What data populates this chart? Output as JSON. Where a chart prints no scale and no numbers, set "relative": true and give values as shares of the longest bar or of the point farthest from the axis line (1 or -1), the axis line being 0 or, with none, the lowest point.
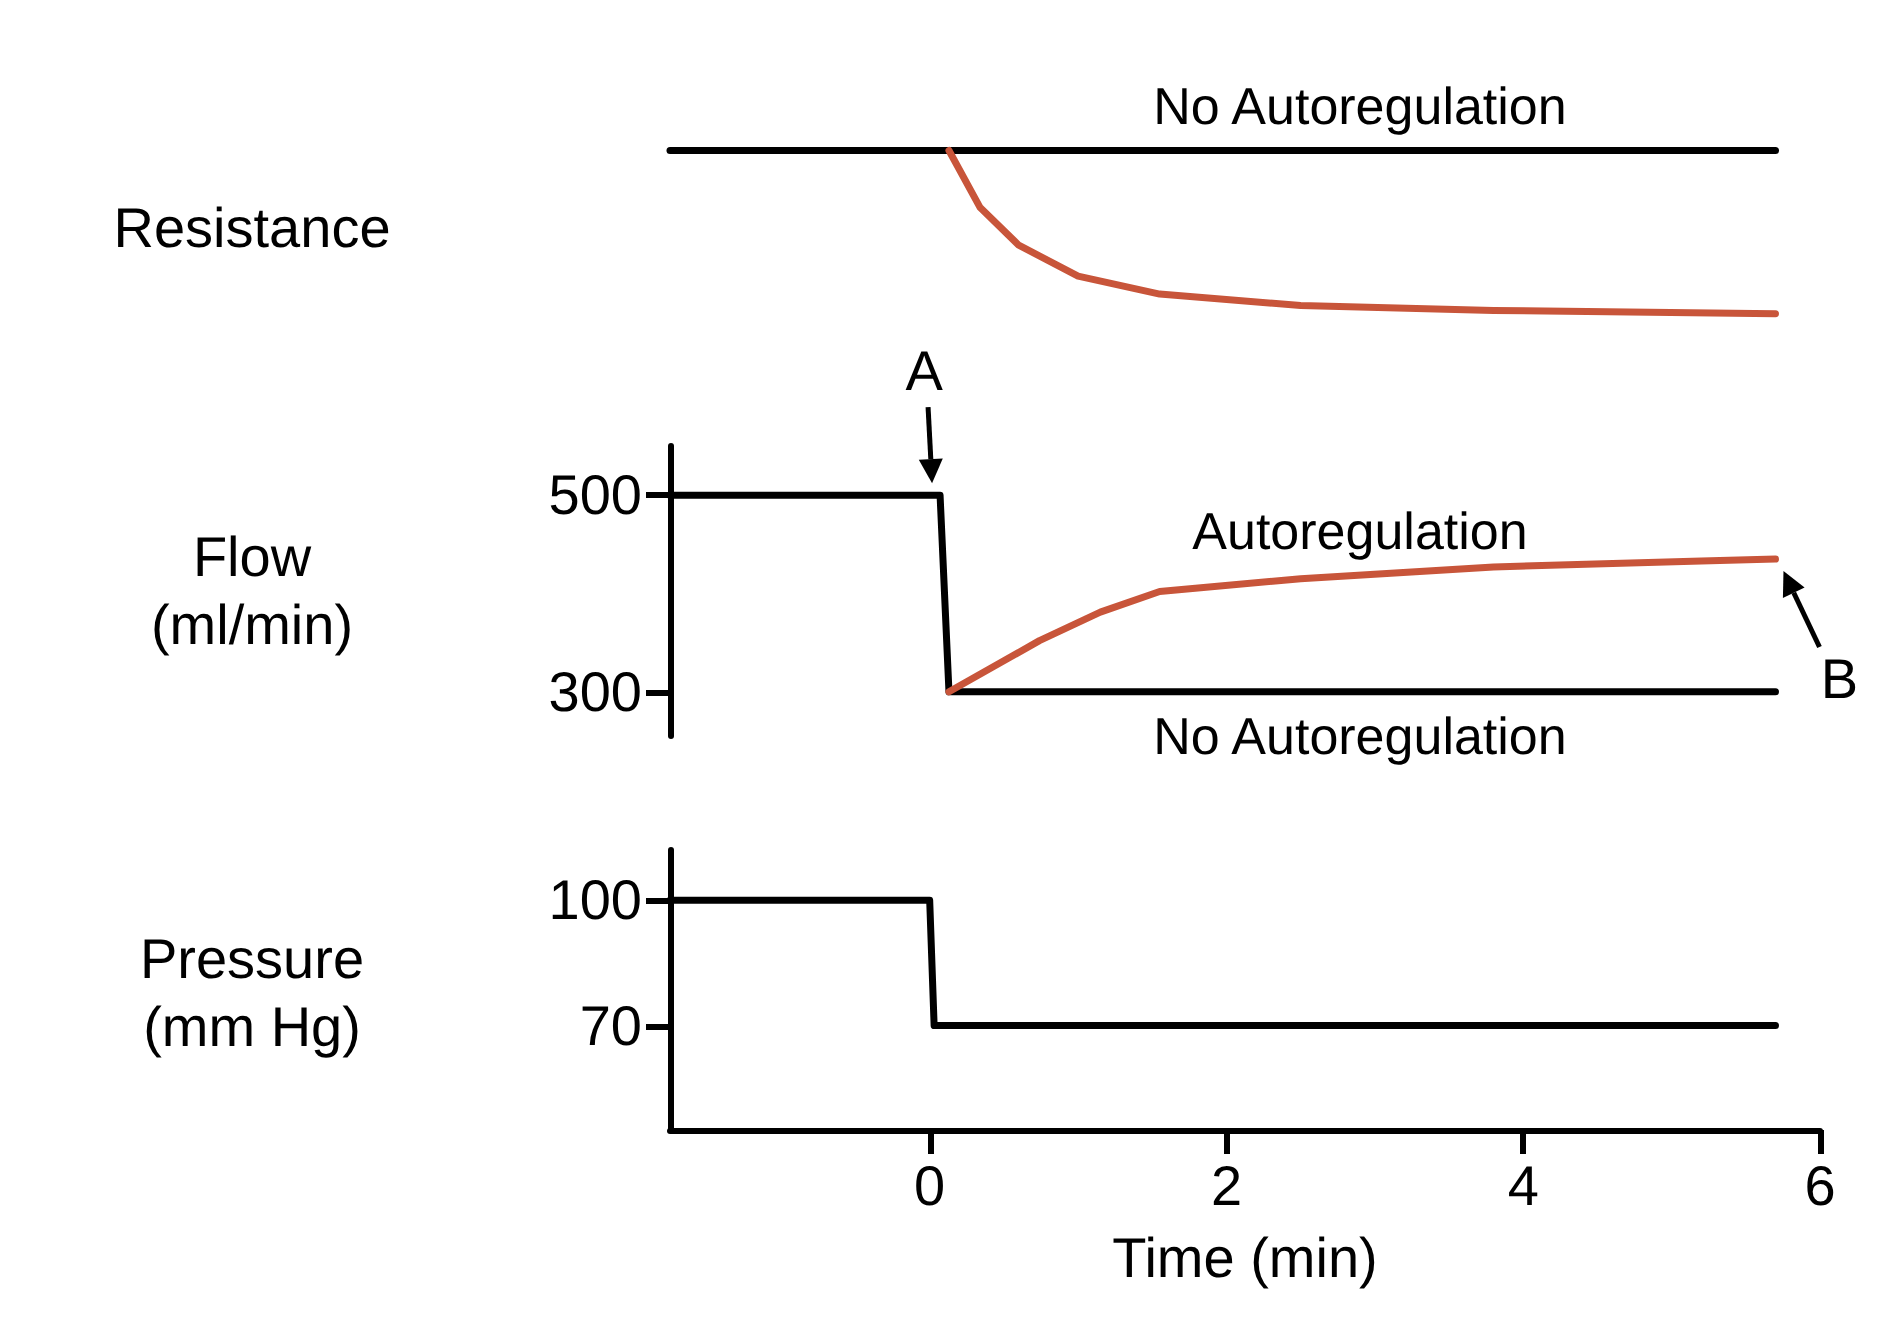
{
  "chart_data": [
    {
      "type": "line",
      "ylabel": "Resistance",
      "relative": true,
      "xlim": [
        -1.75,
        6
      ],
      "tick_labels": false,
      "series": [
        {
          "name": "No Autoregulation",
          "color": "#000000",
          "x": [
            -1.75,
            5.7
          ],
          "values": [
            1,
            1
          ]
        },
        {
          "color": "#c8553a",
          "x": [
            0.13,
            0.34,
            0.6,
            1.0,
            1.55,
            2.5,
            3.8,
            5.7
          ],
          "values": [
            1,
            0.65,
            0.42,
            0.23,
            0.12,
            0.05,
            0.02,
            0
          ]
        }
      ]
    },
    {
      "type": "line",
      "ylabel": "Flow\n(ml/min)",
      "xlim": [
        -1.75,
        6
      ],
      "ylim": [
        255,
        550
      ],
      "yticks": [
        300,
        500
      ],
      "tick_labels": "y",
      "annotations": [
        {
          "text": "A",
          "x": 0.07,
          "y": 500
        },
        {
          "text": "B",
          "x": 5.7,
          "y": 435
        }
      ],
      "series": [
        {
          "name": "No Autoregulation",
          "color": "#000000",
          "x": [
            -1.75,
            0.07,
            0.13,
            5.7
          ],
          "values": [
            500,
            500,
            300,
            300
          ]
        },
        {
          "name": "Autoregulation",
          "color": "#c8553a",
          "x": [
            0.13,
            0.47,
            0.74,
            1.15,
            1.55,
            2.5,
            3.8,
            5.2,
            5.7
          ],
          "values": [
            300,
            329,
            352,
            381,
            402,
            415,
            427,
            433,
            435
          ]
        }
      ]
    },
    {
      "type": "line",
      "ylabel": "Pressure\n(mm Hg)",
      "xlabel": "Time (min)",
      "xlim": [
        -1.75,
        6
      ],
      "xticks": [
        0,
        2,
        4,
        6
      ],
      "ylim": [
        45,
        112
      ],
      "yticks": [
        70,
        100
      ],
      "series": [
        {
          "color": "#000000",
          "x": [
            -1.75,
            0,
            0.03,
            5.7
          ],
          "values": [
            100,
            100,
            70,
            70
          ]
        }
      ]
    }
  ]
}
